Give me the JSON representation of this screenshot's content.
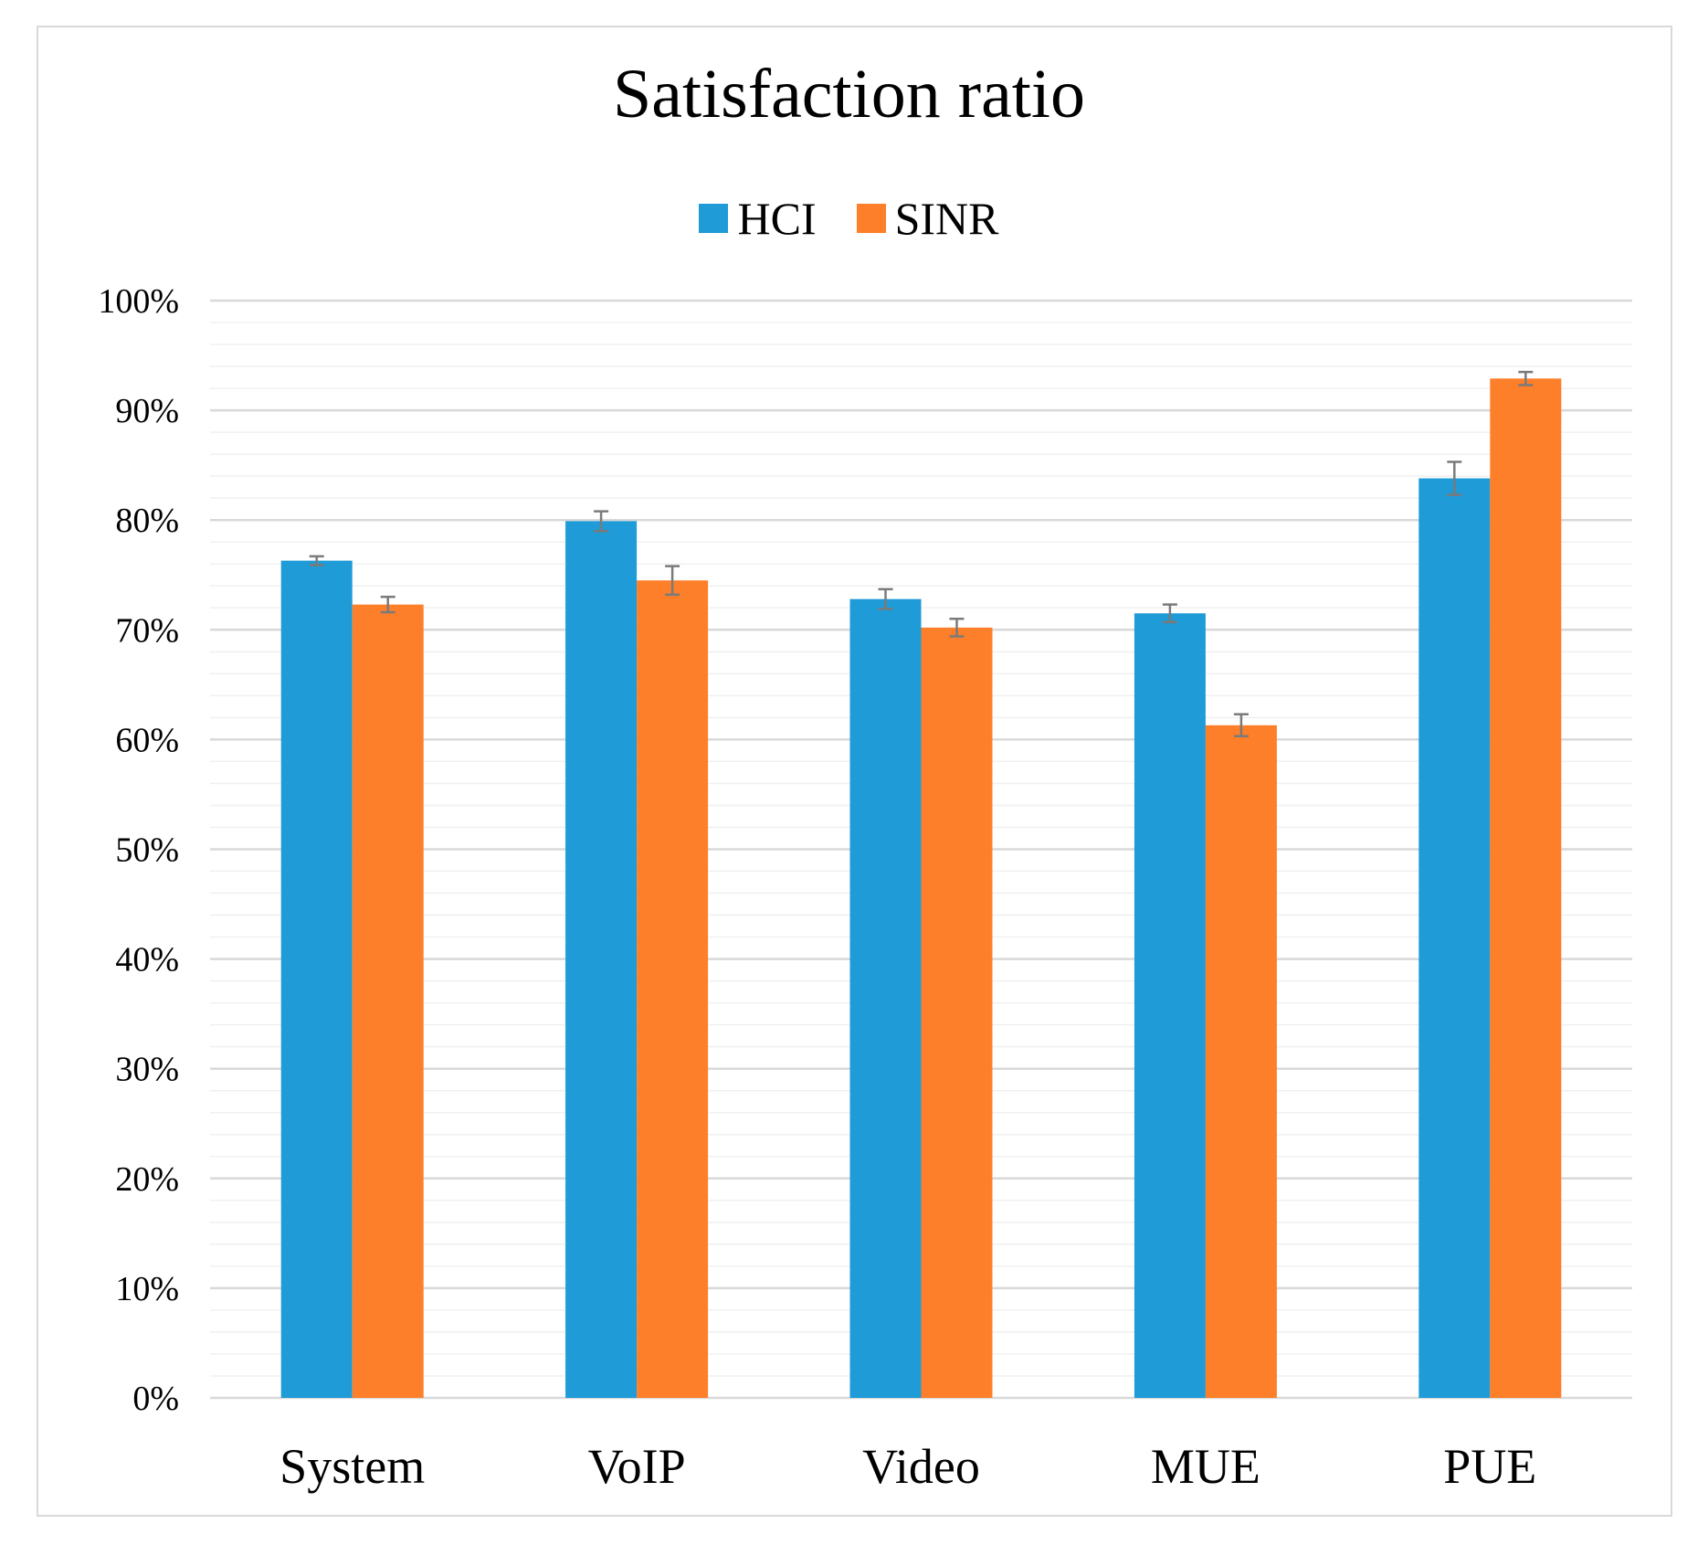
{
  "chart_data": {
    "type": "bar",
    "title": "Satisfaction ratio",
    "xlabel": "",
    "ylabel": "",
    "categories": [
      "System",
      "VoIP",
      "Video",
      "MUE",
      "PUE"
    ],
    "series": [
      {
        "name": "HCI",
        "color": "#1f9bd7",
        "values": [
          76.3,
          79.9,
          72.8,
          71.5,
          83.8
        ],
        "errors": [
          0.4,
          0.9,
          0.9,
          0.8,
          1.5
        ]
      },
      {
        "name": "SINR",
        "color": "#fe7f2a",
        "values": [
          72.3,
          74.5,
          70.2,
          61.3,
          92.9
        ],
        "errors": [
          0.7,
          1.3,
          0.8,
          1.0,
          0.6
        ]
      }
    ],
    "ylim": [
      0,
      100
    ],
    "yticks": [
      0,
      10,
      20,
      30,
      40,
      50,
      60,
      70,
      80,
      90,
      100
    ],
    "ytick_labels": [
      "0%",
      "10%",
      "20%",
      "30%",
      "40%",
      "50%",
      "60%",
      "70%",
      "80%",
      "90%",
      "100%"
    ],
    "grid": true,
    "legend_position": "top-center"
  }
}
